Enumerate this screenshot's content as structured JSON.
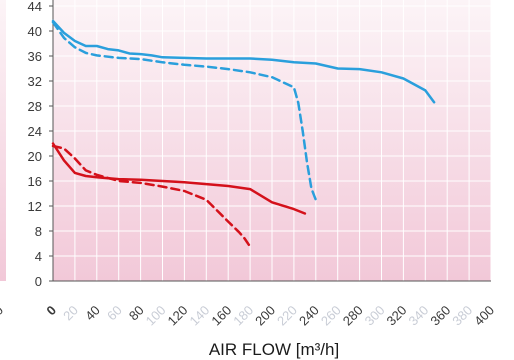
{
  "chart_data": {
    "type": "line",
    "xlabel": "AIR FLOW [m³/h]",
    "ylabel": "",
    "xlim": [
      0,
      400
    ],
    "ylim": [
      0,
      44
    ],
    "x_ticks": [
      {
        "label": "0",
        "emphasis": "strong"
      },
      {
        "label": "20",
        "emphasis": "faded"
      },
      {
        "label": "40",
        "emphasis": "normal"
      },
      {
        "label": "60",
        "emphasis": "faded"
      },
      {
        "label": "80",
        "emphasis": "normal"
      },
      {
        "label": "100",
        "emphasis": "faded"
      },
      {
        "label": "120",
        "emphasis": "normal"
      },
      {
        "label": "140",
        "emphasis": "faded"
      },
      {
        "label": "160",
        "emphasis": "normal"
      },
      {
        "label": "180",
        "emphasis": "faded"
      },
      {
        "label": "200",
        "emphasis": "normal"
      },
      {
        "label": "220",
        "emphasis": "faded"
      },
      {
        "label": "240",
        "emphasis": "normal"
      },
      {
        "label": "260",
        "emphasis": "faded"
      },
      {
        "label": "280",
        "emphasis": "normal"
      },
      {
        "label": "300",
        "emphasis": "faded"
      },
      {
        "label": "320",
        "emphasis": "normal"
      },
      {
        "label": "340",
        "emphasis": "faded"
      },
      {
        "label": "360",
        "emphasis": "normal"
      },
      {
        "label": "380",
        "emphasis": "faded"
      },
      {
        "label": "400",
        "emphasis": "normal"
      }
    ],
    "y_ticks": [
      "0",
      "4",
      "8",
      "12",
      "16",
      "20",
      "24",
      "28",
      "32",
      "36",
      "40",
      "44"
    ],
    "left_cropped_tick": "320",
    "grid": true,
    "legend": "none",
    "colors": {
      "blue": "#2a9fdc",
      "red": "#d4111b",
      "background_top": "#fcf4f7",
      "background_bottom": "#f2c8d8",
      "grid": "#ffffff",
      "axis": "#555555"
    },
    "series": [
      {
        "color": "blue",
        "style": "solid",
        "x": [
          0,
          10,
          20,
          30,
          40,
          50,
          60,
          70,
          80,
          90,
          100,
          120,
          140,
          160,
          180,
          200,
          220,
          240,
          260,
          280,
          300,
          320,
          340,
          348
        ],
        "y": [
          41.6,
          39.7,
          38.4,
          37.6,
          37.6,
          37.1,
          36.9,
          36.4,
          36.3,
          36.1,
          35.8,
          35.7,
          35.6,
          35.6,
          35.6,
          35.4,
          35.0,
          34.8,
          34.0,
          33.9,
          33.4,
          32.4,
          30.5,
          28.6
        ]
      },
      {
        "color": "blue",
        "style": "dashed",
        "x": [
          0,
          10,
          20,
          30,
          40,
          60,
          80,
          100,
          120,
          140,
          160,
          180,
          200,
          220,
          224,
          228,
          232,
          236,
          240
        ],
        "y": [
          41.4,
          38.9,
          37.4,
          36.5,
          36.1,
          35.7,
          35.5,
          35.0,
          34.6,
          34.3,
          33.9,
          33.4,
          32.6,
          31.0,
          28.5,
          24.0,
          19.0,
          14.8,
          13.0
        ]
      },
      {
        "color": "red",
        "style": "solid",
        "x": [
          0,
          10,
          20,
          30,
          40,
          60,
          80,
          100,
          120,
          140,
          160,
          180,
          200,
          220,
          230
        ],
        "y": [
          22.0,
          19.3,
          17.3,
          16.8,
          16.6,
          16.3,
          16.2,
          16.0,
          15.8,
          15.5,
          15.2,
          14.7,
          12.6,
          11.5,
          10.8
        ]
      },
      {
        "color": "red",
        "style": "dashed",
        "x": [
          0,
          10,
          20,
          30,
          40,
          60,
          80,
          100,
          120,
          140,
          160,
          170,
          175,
          180
        ],
        "y": [
          21.6,
          21.2,
          19.6,
          17.7,
          17.0,
          16.0,
          15.7,
          15.1,
          14.4,
          13.0,
          9.5,
          7.8,
          6.8,
          5.5
        ]
      }
    ]
  }
}
